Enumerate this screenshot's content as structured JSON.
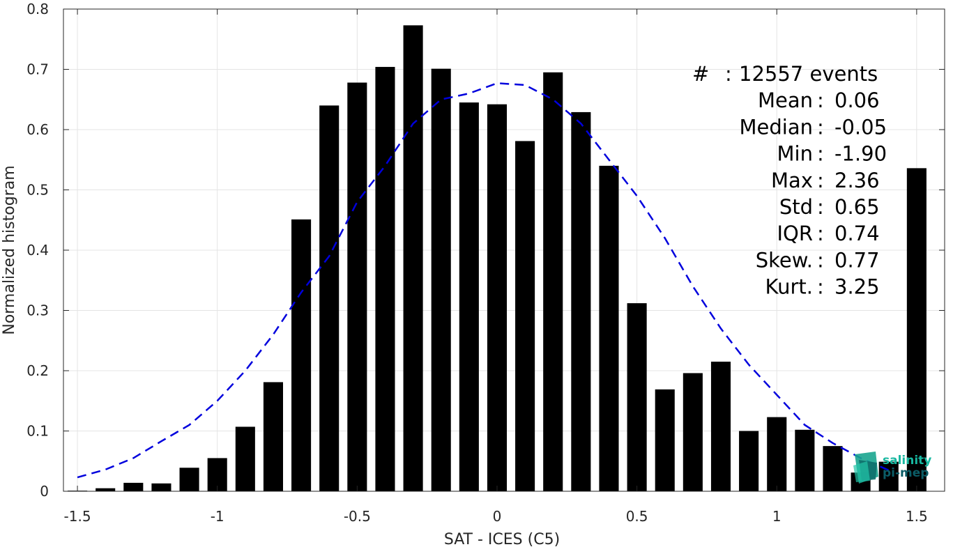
{
  "chart_data": {
    "type": "bar",
    "xlabel": "SAT - ICES (C5)",
    "ylabel": "Normalized histogram",
    "xlim": [
      -1.55,
      1.6
    ],
    "ylim": [
      0,
      0.8
    ],
    "x_ticks": [
      -1.5,
      -1,
      -0.5,
      0,
      0.5,
      1,
      1.5
    ],
    "x_tick_labels": [
      "-1.5",
      "-1",
      "-0.5",
      "0",
      "0.5",
      "1",
      "1.5"
    ],
    "y_ticks": [
      0,
      0.1,
      0.2,
      0.3,
      0.4,
      0.5,
      0.6,
      0.7,
      0.8
    ],
    "y_tick_labels": [
      "0",
      "0.1",
      "0.2",
      "0.3",
      "0.4",
      "0.5",
      "0.6",
      "0.7",
      "0.8"
    ],
    "grid": true,
    "bar_color": "#000000",
    "bar_width": 0.07,
    "bars": {
      "x": [
        -1.5,
        -1.4,
        -1.3,
        -1.2,
        -1.1,
        -1.0,
        -0.9,
        -0.8,
        -0.7,
        -0.6,
        -0.5,
        -0.4,
        -0.3,
        -0.2,
        -0.1,
        0.0,
        0.1,
        0.2,
        0.3,
        0.4,
        0.5,
        0.6,
        0.7,
        0.8,
        0.9,
        1.0,
        1.1,
        1.2,
        1.3,
        1.4,
        1.5
      ],
      "values": [
        0.001,
        0.005,
        0.014,
        0.013,
        0.039,
        0.055,
        0.107,
        0.181,
        0.451,
        0.64,
        0.678,
        0.704,
        0.773,
        0.701,
        0.645,
        0.642,
        0.581,
        0.695,
        0.629,
        0.54,
        0.312,
        0.169,
        0.196,
        0.215,
        0.1,
        0.123,
        0.102,
        0.075,
        0.031,
        0.049,
        0.536
      ]
    },
    "fit_curve": {
      "style": "dashed",
      "color": "#0000dd",
      "x": [
        -1.5,
        -1.4,
        -1.3,
        -1.2,
        -1.1,
        -1.0,
        -0.9,
        -0.8,
        -0.7,
        -0.6,
        -0.5,
        -0.4,
        -0.3,
        -0.2,
        -0.1,
        0.0,
        0.1,
        0.2,
        0.3,
        0.4,
        0.5,
        0.6,
        0.7,
        0.8,
        0.9,
        1.0,
        1.1,
        1.2,
        1.3,
        1.4
      ],
      "values": [
        0.023,
        0.036,
        0.055,
        0.083,
        0.11,
        0.15,
        0.2,
        0.26,
        0.33,
        0.39,
        0.48,
        0.54,
        0.61,
        0.65,
        0.66,
        0.677,
        0.674,
        0.65,
        0.61,
        0.55,
        0.49,
        0.42,
        0.34,
        0.27,
        0.21,
        0.16,
        0.11,
        0.08,
        0.055,
        0.035
      ]
    },
    "stats": [
      {
        "label": "#",
        "sep": " : ",
        "value": "12557 events"
      },
      {
        "label": "Mean",
        "sep": " : ",
        "value": "0.06"
      },
      {
        "label": "Median",
        "sep": " : ",
        "value": "-0.05"
      },
      {
        "label": "Min",
        "sep": " : ",
        "value": "-1.90"
      },
      {
        "label": "Max",
        "sep": " : ",
        "value": "2.36"
      },
      {
        "label": "Std",
        "sep": " : ",
        "value": "0.65"
      },
      {
        "label": "IQR",
        "sep": " : ",
        "value": "0.74"
      },
      {
        "label": "Skew.",
        "sep": " : ",
        "value": "0.77"
      },
      {
        "label": "Kurt.",
        "sep": " : ",
        "value": "3.25"
      }
    ]
  },
  "logo": {
    "line1": "salinity",
    "line2": "pi-mep",
    "color1": "#17b7a0",
    "color2": "#0b5c66"
  }
}
